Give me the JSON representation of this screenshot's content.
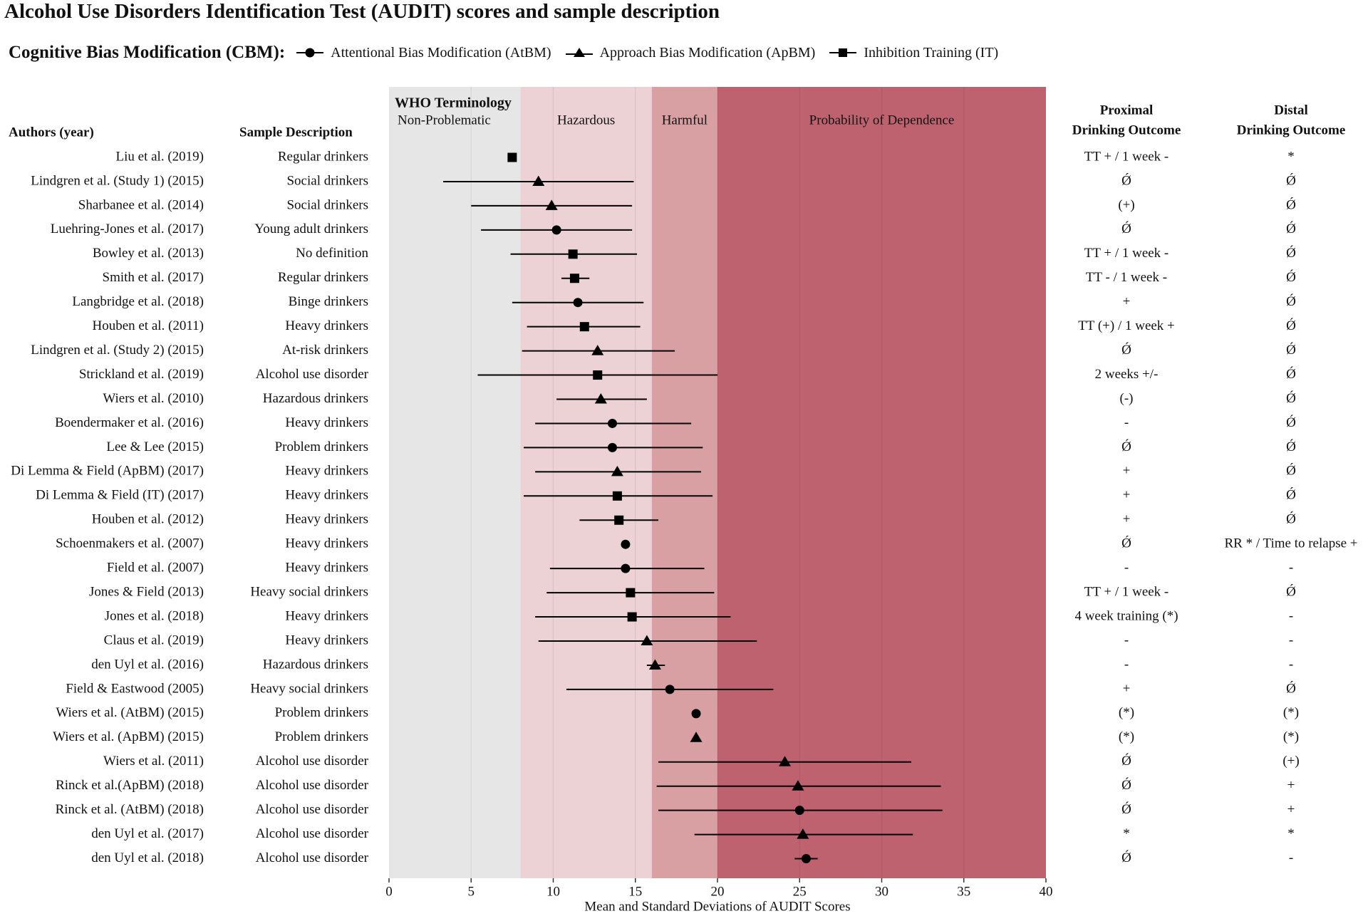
{
  "title": "Alcohol Use Disorders Identification Test (AUDIT) scores and sample description",
  "legend": {
    "title": "Cognitive Bias Modification (CBM):",
    "items": [
      {
        "label": "Attentional Bias Modification (AtBM)",
        "marker": "circle"
      },
      {
        "label": "Approach Bias Modification (ApBM)",
        "marker": "triangle"
      },
      {
        "label": "Inhibition Training (IT)",
        "marker": "square"
      }
    ]
  },
  "columns": {
    "authors": "Authors (year)",
    "sample": "Sample Description",
    "proximal": [
      "Proximal",
      "Drinking Outcome"
    ],
    "distal": [
      "Distal",
      "Drinking Outcome"
    ]
  },
  "colors": {
    "non_problematic": "#e6e6e6",
    "hazardous": "#ecd1d5",
    "harmful": "#d9a0a4",
    "dependence": "#be6270",
    "marker": "#000000"
  },
  "chart_data": {
    "type": "scatter",
    "title": "Alcohol Use Disorders Identification Test (AUDIT) scores and sample description",
    "xlabel": "Mean and Standard Deviations of AUDIT Scores",
    "xlim": [
      0,
      40
    ],
    "xticks": [
      0,
      5,
      10,
      15,
      20,
      25,
      30,
      35,
      40
    ],
    "zones_title": "WHO Terminology",
    "zones": [
      {
        "label": "Non-Problematic",
        "from": 0,
        "to": 8
      },
      {
        "label": "Hazardous",
        "from": 8,
        "to": 16
      },
      {
        "label": "Harmful",
        "from": 16,
        "to": 20
      },
      {
        "label": "Probability of Dependence",
        "from": 20,
        "to": 40
      }
    ],
    "studies": [
      {
        "author": "Liu et al. (2019)",
        "sample": "Regular drinkers",
        "type": "IT",
        "mean": 7.5,
        "lo": null,
        "hi": null,
        "proximal": "TT + / 1 week -",
        "distal": "*"
      },
      {
        "author": "Lindgren et al. (Study 1) (2015)",
        "sample": "Social drinkers",
        "type": "ApBM",
        "mean": 9.1,
        "lo": 3.3,
        "hi": 14.9,
        "proximal": "Ǿ",
        "distal": "Ǿ"
      },
      {
        "author": "Sharbanee et al. (2014)",
        "sample": "Social drinkers",
        "type": "ApBM",
        "mean": 9.9,
        "lo": 5.0,
        "hi": 14.8,
        "proximal": "(+)",
        "distal": "Ǿ"
      },
      {
        "author": "Luehring-Jones et al. (2017)",
        "sample": "Young adult drinkers",
        "type": "AtBM",
        "mean": 10.2,
        "lo": 5.6,
        "hi": 14.8,
        "proximal": "Ǿ",
        "distal": "Ǿ"
      },
      {
        "author": "Bowley et al. (2013)",
        "sample": "No definition",
        "type": "IT",
        "mean": 11.2,
        "lo": 7.4,
        "hi": 15.1,
        "proximal": "TT + / 1 week -",
        "distal": "Ǿ"
      },
      {
        "author": "Smith et al. (2017)",
        "sample": "Regular drinkers",
        "type": "IT",
        "mean": 11.3,
        "lo": 10.5,
        "hi": 12.2,
        "proximal": "TT - / 1 week -",
        "distal": "Ǿ"
      },
      {
        "author": "Langbridge et al. (2018)",
        "sample": "Binge drinkers",
        "type": "AtBM",
        "mean": 11.5,
        "lo": 7.5,
        "hi": 15.5,
        "proximal": "+",
        "distal": "Ǿ"
      },
      {
        "author": "Houben et al. (2011)",
        "sample": "Heavy drinkers",
        "type": "IT",
        "mean": 11.9,
        "lo": 8.4,
        "hi": 15.3,
        "proximal": "TT (+) / 1 week +",
        "distal": "Ǿ"
      },
      {
        "author": "Lindgren et al. (Study 2) (2015)",
        "sample": "At-risk drinkers",
        "type": "ApBM",
        "mean": 12.7,
        "lo": 8.1,
        "hi": 17.4,
        "proximal": "Ǿ",
        "distal": "Ǿ"
      },
      {
        "author": "Strickland et al. (2019)",
        "sample": "Alcohol use disorder",
        "type": "IT",
        "mean": 12.7,
        "lo": 5.4,
        "hi": 20.0,
        "proximal": "2 weeks +/-",
        "distal": "Ǿ"
      },
      {
        "author": "Wiers  et al. (2010)",
        "sample": "Hazardous drinkers",
        "type": "ApBM",
        "mean": 12.9,
        "lo": 10.2,
        "hi": 15.7,
        "proximal": "(-)",
        "distal": "Ǿ"
      },
      {
        "author": "Boendermaker et al. (2016)",
        "sample": "Heavy drinkers",
        "type": "AtBM",
        "mean": 13.6,
        "lo": 8.9,
        "hi": 18.4,
        "proximal": "-",
        "distal": "Ǿ"
      },
      {
        "author": "Lee & Lee (2015)",
        "sample": "Problem drinkers",
        "type": "AtBM",
        "mean": 13.6,
        "lo": 8.2,
        "hi": 19.1,
        "proximal": "Ǿ",
        "distal": "Ǿ"
      },
      {
        "author": "Di Lemma & Field (ApBM) (2017)",
        "sample": "Heavy drinkers",
        "type": "ApBM",
        "mean": 13.9,
        "lo": 8.9,
        "hi": 19.0,
        "proximal": "+",
        "distal": "Ǿ"
      },
      {
        "author": "Di Lemma & Field (IT) (2017)",
        "sample": "Heavy drinkers",
        "type": "IT",
        "mean": 13.9,
        "lo": 8.2,
        "hi": 19.7,
        "proximal": "+",
        "distal": "Ǿ"
      },
      {
        "author": "Houben et al. (2012)",
        "sample": "Heavy drinkers",
        "type": "IT",
        "mean": 14.0,
        "lo": 11.6,
        "hi": 16.4,
        "proximal": "+",
        "distal": "Ǿ"
      },
      {
        "author": "Schoenmakers  et al. (2007)",
        "sample": "Heavy drinkers",
        "type": "AtBM",
        "mean": 14.4,
        "lo": null,
        "hi": null,
        "proximal": "Ǿ",
        "distal": "RR * / Time to relapse +"
      },
      {
        "author": "Field et al. (2007)",
        "sample": "Heavy drinkers",
        "type": "AtBM",
        "mean": 14.4,
        "lo": 9.8,
        "hi": 19.2,
        "proximal": "-",
        "distal": "-"
      },
      {
        "author": "Jones & Field (2013)",
        "sample": "Heavy social drinkers",
        "type": "IT",
        "mean": 14.7,
        "lo": 9.6,
        "hi": 19.8,
        "proximal": "TT + / 1 week -",
        "distal": "Ǿ"
      },
      {
        "author": "Jones et al. (2018)",
        "sample": "Heavy drinkers",
        "type": "IT",
        "mean": 14.8,
        "lo": 8.9,
        "hi": 20.8,
        "proximal": "4 week training (*)",
        "distal": "-"
      },
      {
        "author": "Claus et al. (2019)",
        "sample": "Heavy drinkers",
        "type": "ApBM",
        "mean": 15.7,
        "lo": 9.1,
        "hi": 22.4,
        "proximal": "-",
        "distal": "-"
      },
      {
        "author": "den Uyl et al. (2016)",
        "sample": "Hazardous drinkers",
        "type": "ApBM",
        "mean": 16.2,
        "lo": 15.7,
        "hi": 16.8,
        "proximal": "-",
        "distal": "-"
      },
      {
        "author": "Field & Eastwood (2005)",
        "sample": "Heavy social drinkers",
        "type": "AtBM",
        "mean": 17.1,
        "lo": 10.8,
        "hi": 23.4,
        "proximal": "+",
        "distal": "Ǿ"
      },
      {
        "author": "Wiers et al. (AtBM) (2015)",
        "sample": "Problem drinkers",
        "type": "AtBM",
        "mean": 18.7,
        "lo": null,
        "hi": null,
        "proximal": "(*)",
        "distal": "(*)"
      },
      {
        "author": "Wiers et al. (ApBM) (2015)",
        "sample": "Problem drinkers",
        "type": "ApBM",
        "mean": 18.7,
        "lo": null,
        "hi": null,
        "proximal": "(*)",
        "distal": "(*)"
      },
      {
        "author": "Wiers  et al. (2011)",
        "sample": "Alcohol use disorder",
        "type": "ApBM",
        "mean": 24.1,
        "lo": 16.4,
        "hi": 31.8,
        "proximal": "Ǿ",
        "distal": "(+)"
      },
      {
        "author": "Rinck et al.(ApBM) (2018)",
        "sample": "Alcohol use disorder",
        "type": "ApBM",
        "mean": 24.9,
        "lo": 16.3,
        "hi": 33.6,
        "proximal": "Ǿ",
        "distal": "+"
      },
      {
        "author": "Rinck et al. (AtBM) (2018)",
        "sample": "Alcohol use disorder",
        "type": "AtBM",
        "mean": 25.0,
        "lo": 16.4,
        "hi": 33.7,
        "proximal": "Ǿ",
        "distal": "+"
      },
      {
        "author": "den Uyl et al. (2017)",
        "sample": "Alcohol use disorder",
        "type": "ApBM",
        "mean": 25.2,
        "lo": 18.6,
        "hi": 31.9,
        "proximal": "*",
        "distal": "*"
      },
      {
        "author": "den Uyl et al. (2018)",
        "sample": "Alcohol use disorder",
        "type": "AtBM",
        "mean": 25.4,
        "lo": 24.7,
        "hi": 26.1,
        "proximal": "Ǿ",
        "distal": "-"
      }
    ]
  }
}
